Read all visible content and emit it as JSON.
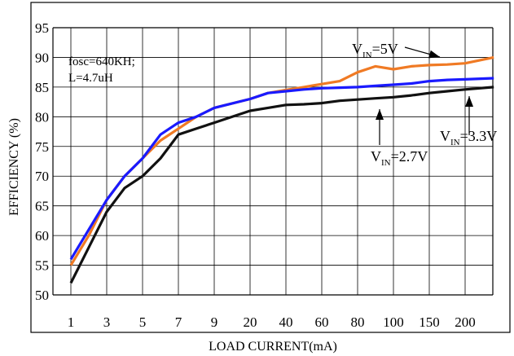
{
  "chart_data": {
    "type": "line",
    "title": "",
    "xlabel": "LOAD CURRENT(mA)",
    "ylabel": "EFFICIENCY (%)",
    "x_ticks": [
      "1",
      "3",
      "5",
      "7",
      "9",
      "20",
      "40",
      "60",
      "80",
      "100",
      "150",
      "200"
    ],
    "y_ticks": [
      "50",
      "55",
      "60",
      "65",
      "70",
      "75",
      "80",
      "85",
      "90",
      "95"
    ],
    "ylim": [
      50,
      95
    ],
    "grid": true,
    "annotation_lines": [
      "fosc=640KH;",
      "L=4.7uH"
    ],
    "curve_labels": [
      {
        "main": "V",
        "sub": "IN",
        "rest": "=5V",
        "series": 0
      },
      {
        "main": "V",
        "sub": "IN",
        "rest": "=3.3V",
        "series": 1
      },
      {
        "main": "V",
        "sub": "IN",
        "rest": "=2.7V",
        "series": 2
      }
    ],
    "series": [
      {
        "color": "#f07a24",
        "points": [
          [
            1,
            55
          ],
          [
            2,
            60
          ],
          [
            3,
            66
          ],
          [
            4,
            70
          ],
          [
            5,
            73
          ],
          [
            6,
            76
          ],
          [
            7,
            78
          ],
          [
            8,
            80
          ],
          [
            9,
            81.5
          ],
          [
            20,
            83
          ],
          [
            30,
            84
          ],
          [
            40,
            84.5
          ],
          [
            50,
            85
          ],
          [
            60,
            85.5
          ],
          [
            70,
            86
          ],
          [
            80,
            87.5
          ],
          [
            90,
            88.5
          ],
          [
            100,
            88
          ],
          [
            125,
            88.5
          ],
          [
            150,
            88.7
          ],
          [
            175,
            88.8
          ],
          [
            200,
            89
          ],
          [
            240,
            90
          ]
        ]
      },
      {
        "color": "#1a1aff",
        "points": [
          [
            1,
            56
          ],
          [
            2,
            61
          ],
          [
            3,
            66
          ],
          [
            4,
            70
          ],
          [
            5,
            73
          ],
          [
            6,
            77
          ],
          [
            7,
            79
          ],
          [
            8,
            80
          ],
          [
            9,
            81.5
          ],
          [
            20,
            83
          ],
          [
            30,
            84
          ],
          [
            40,
            84.3
          ],
          [
            50,
            84.6
          ],
          [
            60,
            84.8
          ],
          [
            70,
            84.9
          ],
          [
            80,
            85
          ],
          [
            90,
            85.2
          ],
          [
            100,
            85.4
          ],
          [
            125,
            85.6
          ],
          [
            150,
            86
          ],
          [
            175,
            86.2
          ],
          [
            200,
            86.3
          ],
          [
            240,
            86.5
          ]
        ]
      },
      {
        "color": "#111111",
        "points": [
          [
            1,
            52
          ],
          [
            2,
            58
          ],
          [
            3,
            64
          ],
          [
            4,
            68
          ],
          [
            5,
            70
          ],
          [
            6,
            73
          ],
          [
            7,
            77
          ],
          [
            8,
            78
          ],
          [
            9,
            79
          ],
          [
            20,
            81
          ],
          [
            30,
            81.5
          ],
          [
            40,
            82
          ],
          [
            50,
            82.1
          ],
          [
            60,
            82.3
          ],
          [
            70,
            82.7
          ],
          [
            80,
            82.9
          ],
          [
            90,
            83.1
          ],
          [
            100,
            83.3
          ],
          [
            125,
            83.6
          ],
          [
            150,
            84
          ],
          [
            175,
            84.3
          ],
          [
            200,
            84.6
          ],
          [
            240,
            85
          ]
        ]
      }
    ]
  }
}
